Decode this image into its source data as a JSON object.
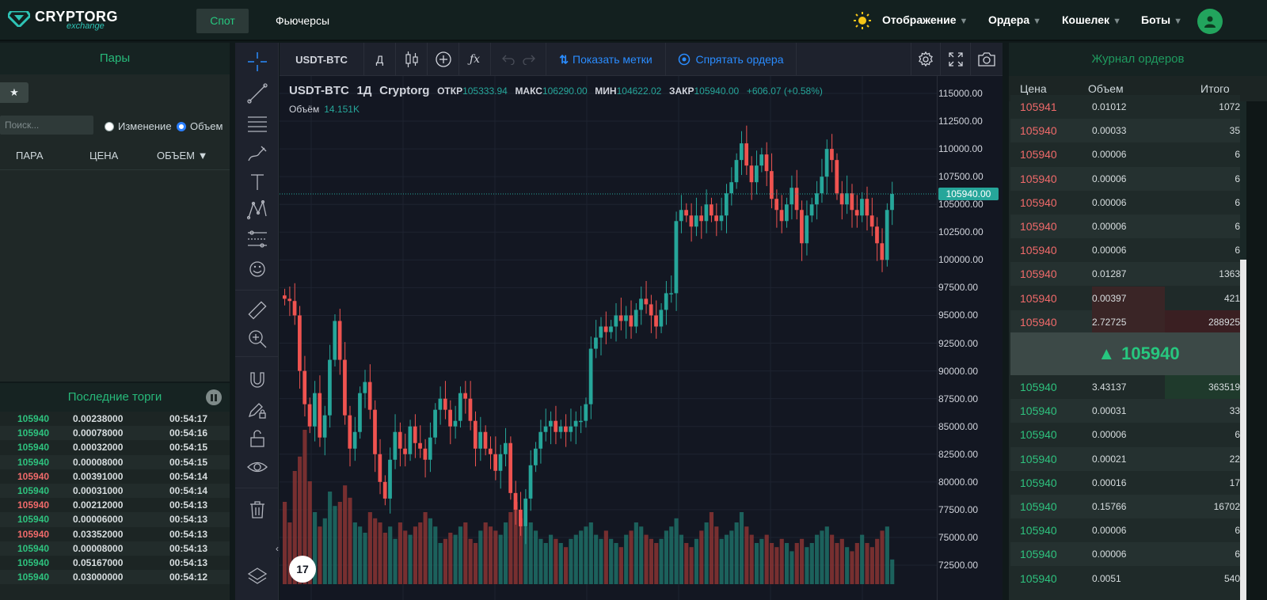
{
  "nav": {
    "logo_main": "CRYPTORG",
    "logo_sub": "exchange",
    "tabs": [
      "Спот",
      "Фьючерсы"
    ],
    "menus": [
      "Отображение",
      "Ордера",
      "Кошелек",
      "Боты"
    ],
    "icons": [
      "sun-icon",
      "user-icon"
    ]
  },
  "pairs": {
    "title": "Пары",
    "search_placeholder": "Поиск...",
    "radio_change": "Изменение",
    "radio_volume": "Объем",
    "selected_radio": "Объем",
    "columns": [
      "ПАРА",
      "ЦЕНА",
      "ОБЪЕМ ▼"
    ]
  },
  "trades": {
    "title": "Последние торги",
    "rows": [
      {
        "price": "105940",
        "side": "buy",
        "amount": "0.00238000",
        "time": "00:54:17"
      },
      {
        "price": "105940",
        "side": "buy",
        "amount": "0.00078000",
        "time": "00:54:16"
      },
      {
        "price": "105940",
        "side": "buy",
        "amount": "0.00032000",
        "time": "00:54:15"
      },
      {
        "price": "105940",
        "side": "buy",
        "amount": "0.00008000",
        "time": "00:54:15"
      },
      {
        "price": "105940",
        "side": "sell",
        "amount": "0.00391000",
        "time": "00:54:14"
      },
      {
        "price": "105940",
        "side": "buy",
        "amount": "0.00031000",
        "time": "00:54:14"
      },
      {
        "price": "105940",
        "side": "sell",
        "amount": "0.00212000",
        "time": "00:54:13"
      },
      {
        "price": "105940",
        "side": "buy",
        "amount": "0.00006000",
        "time": "00:54:13"
      },
      {
        "price": "105940",
        "side": "sell",
        "amount": "0.03352000",
        "time": "00:54:13"
      },
      {
        "price": "105940",
        "side": "buy",
        "amount": "0.00008000",
        "time": "00:54:13"
      },
      {
        "price": "105940",
        "side": "buy",
        "amount": "0.05167000",
        "time": "00:54:13"
      },
      {
        "price": "105940",
        "side": "buy",
        "amount": "0.03000000",
        "time": "00:54:12"
      }
    ]
  },
  "chart_toolbar": {
    "symbol": "USDT-BTC",
    "interval": "Д",
    "show_marks": "Показать метки",
    "hide_orders": "Спрятать ордера"
  },
  "chart_legend": {
    "symbol": "USDT-BTC",
    "interval": "1Д",
    "source": "Cryptorg",
    "open_label": "ОТКР",
    "open": "105333.94",
    "high_label": "МАКС",
    "high": "106290.00",
    "low_label": "МИН",
    "low": "104622.02",
    "close_label": "ЗАКР",
    "close": "105940.00",
    "change": "+606.07 (+0.58%)",
    "volume_label": "Объём",
    "volume": "14.151K",
    "current_price": "105940.00"
  },
  "chart_data": {
    "type": "candlestick",
    "price_ticks": [
      "115000.00",
      "112500.00",
      "110000.00",
      "107500.00",
      "105000.00",
      "102500.00",
      "100000.00",
      "97500.00",
      "95000.00",
      "92500.00",
      "90000.00",
      "87500.00",
      "85000.00",
      "82500.00",
      "80000.00",
      "77500.00",
      "75000.00",
      "72500.00"
    ],
    "ylim": [
      72000,
      115500
    ],
    "last_price": 105940,
    "close_series": [
      96500,
      96300,
      95000,
      90000,
      87000,
      85000,
      88000,
      84000,
      86000,
      91000,
      94500,
      91000,
      86000,
      83000,
      84500,
      88000,
      89000,
      86500,
      82500,
      80000,
      78500,
      82000,
      84500,
      83000,
      82500,
      85000,
      83500,
      83000,
      82000,
      84000,
      86500,
      87500,
      86500,
      85000,
      85500,
      88000,
      87500,
      85500,
      83000,
      84500,
      83000,
      82500,
      81000,
      82500,
      83500,
      79000,
      77500,
      76000,
      78500,
      81500,
      83000,
      84500,
      85000,
      85500,
      84500,
      85000,
      84500,
      85000,
      85500,
      85500,
      87000,
      92000,
      93000,
      94000,
      93500,
      94000,
      95000,
      94500,
      95000,
      94000,
      95500,
      96500,
      96000,
      95000,
      94000,
      95500,
      97000,
      97000,
      103500,
      104500,
      104000,
      103000,
      104000,
      103500,
      105000,
      104000,
      103500,
      104000,
      106000,
      107000,
      109000,
      110500,
      108500,
      107000,
      108500,
      109500,
      108000,
      105500,
      104500,
      103500,
      105000,
      106500,
      104500,
      101500,
      104000,
      105000,
      106000,
      107500,
      110000,
      109000,
      106000,
      105000,
      106000,
      104500,
      104000,
      105500,
      104000,
      103000,
      101500,
      100000,
      104500,
      105940
    ],
    "volume_series": [
      40,
      30,
      55,
      62,
      75,
      50,
      35,
      28,
      32,
      45,
      38,
      40,
      48,
      42,
      30,
      28,
      25,
      35,
      32,
      30,
      25,
      28,
      22,
      30,
      26,
      24,
      28,
      30,
      35,
      32,
      28,
      20,
      22,
      25,
      24,
      28,
      30,
      22,
      20,
      26,
      30,
      28,
      26,
      24,
      30,
      35,
      40,
      32,
      28,
      30,
      26,
      22,
      20,
      24,
      22,
      20,
      18,
      22,
      24,
      26,
      28,
      30,
      24,
      22,
      26,
      22,
      20,
      18,
      24,
      26,
      30,
      28,
      24,
      22,
      20,
      22,
      26,
      28,
      32,
      24,
      20,
      18,
      22,
      26,
      30,
      35,
      28,
      22,
      24,
      26,
      30,
      35,
      28,
      24,
      20,
      22,
      24,
      20,
      18,
      22,
      20,
      16,
      20,
      22,
      18,
      20,
      24,
      26,
      28,
      24,
      20,
      22,
      18,
      16,
      20,
      24,
      20,
      18,
      22,
      26,
      28,
      12
    ]
  },
  "orderbook": {
    "title": "Журнал ордеров",
    "columns": [
      "Цена",
      "Объем",
      "Итого"
    ],
    "asks": [
      {
        "price": "105941",
        "amount": "0.01012",
        "total": "1072"
      },
      {
        "price": "105940",
        "amount": "0.00033",
        "total": "35"
      },
      {
        "price": "105940",
        "amount": "0.00006",
        "total": "6"
      },
      {
        "price": "105940",
        "amount": "0.00006",
        "total": "6"
      },
      {
        "price": "105940",
        "amount": "0.00006",
        "total": "6"
      },
      {
        "price": "105940",
        "amount": "0.00006",
        "total": "6"
      },
      {
        "price": "105940",
        "amount": "0.00006",
        "total": "6"
      },
      {
        "price": "105940",
        "amount": "0.01287",
        "total": "1363"
      },
      {
        "price": "105940",
        "amount": "0.00397",
        "total": "421"
      },
      {
        "price": "105940",
        "amount": "2.72725",
        "total": "288925"
      }
    ],
    "mid_price": "105940",
    "bids": [
      {
        "price": "105940",
        "amount": "3.43137",
        "total": "363519"
      },
      {
        "price": "105940",
        "amount": "0.00031",
        "total": "33"
      },
      {
        "price": "105940",
        "amount": "0.00006",
        "total": "6"
      },
      {
        "price": "105940",
        "amount": "0.00021",
        "total": "22"
      },
      {
        "price": "105940",
        "amount": "0.00016",
        "total": "17"
      },
      {
        "price": "105940",
        "amount": "0.15766",
        "total": "16702"
      },
      {
        "price": "105940",
        "amount": "0.00006",
        "total": "6"
      },
      {
        "price": "105940",
        "amount": "0.00006",
        "total": "6"
      },
      {
        "price": "105940",
        "amount": "0.0051",
        "total": "540"
      }
    ],
    "colors": {
      "ask": "#f06a6a",
      "bid": "#2ec27e",
      "ask_depth": "#3a2526",
      "bid_depth": "#1f3a2c"
    }
  }
}
